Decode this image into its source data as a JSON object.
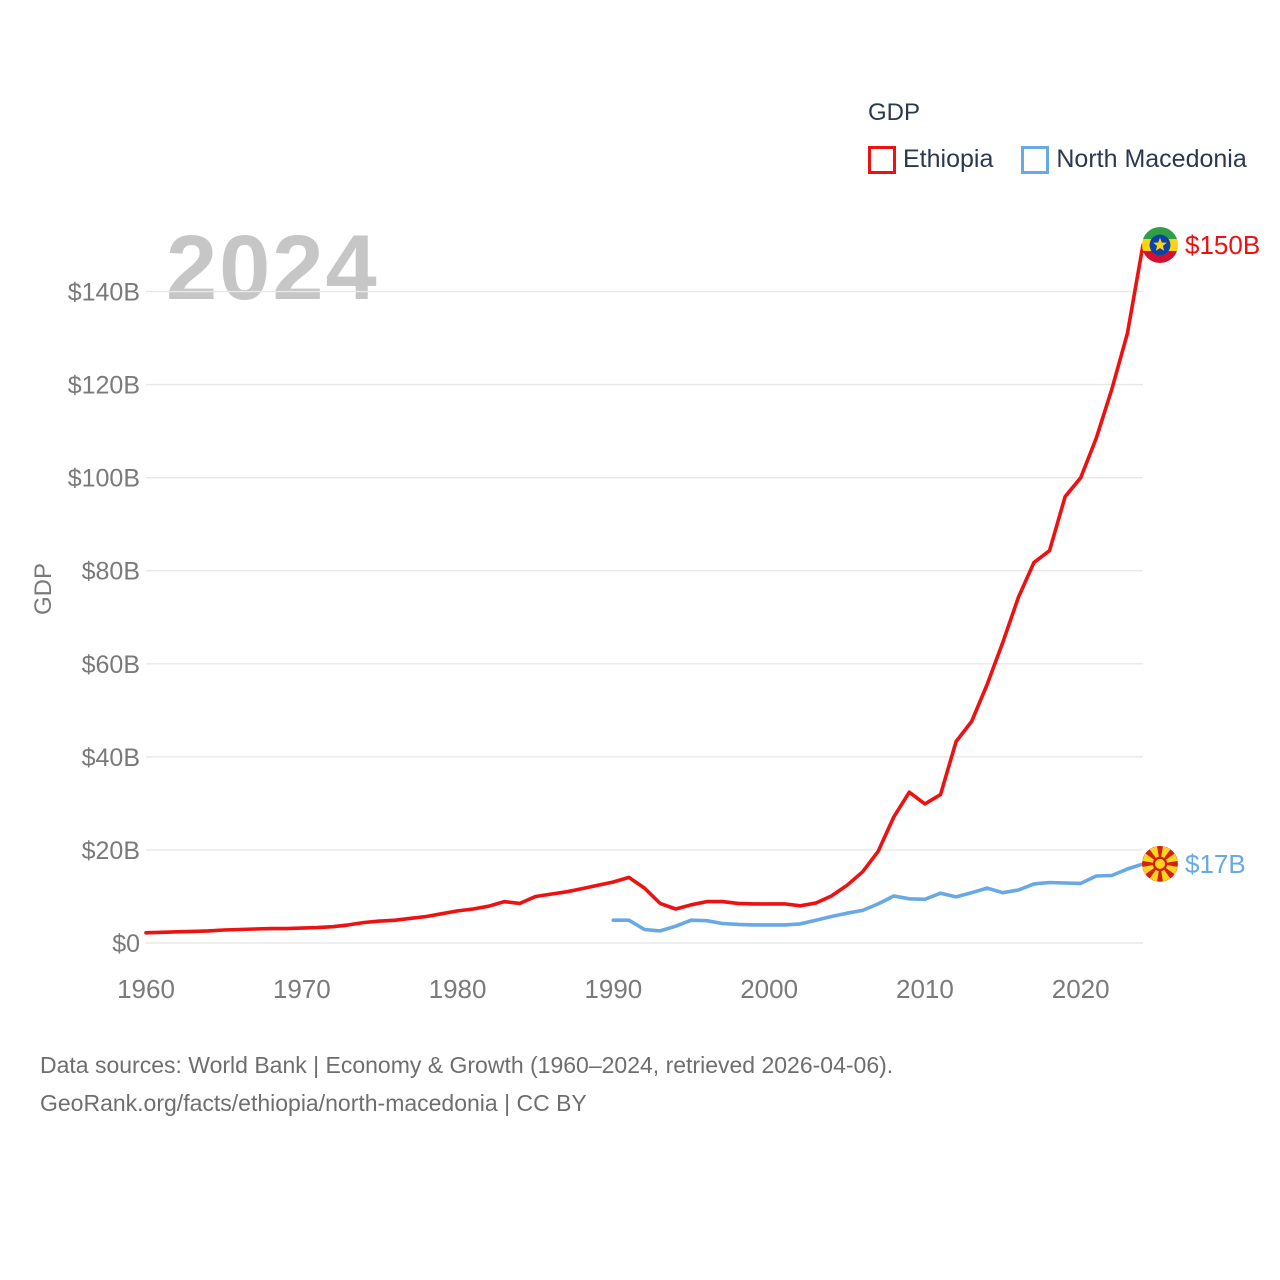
{
  "watermark": "2024",
  "legend": {
    "title": "GDP",
    "items": [
      {
        "label": "Ethiopia",
        "color": "#ee1111"
      },
      {
        "label": "North Macedonia",
        "color": "#68a9e5"
      }
    ]
  },
  "footer": {
    "line1": "Data sources: World Bank | Economy & Growth (1960–2024, retrieved 2026-04-06).",
    "line2": "GeoRank.org/facts/ethiopia/north-macedonia | CC BY"
  },
  "colors": {
    "ethiopia_line": "#ee1111",
    "north_macedonia_line": "#68a9e5",
    "legend_text": "#2a3950",
    "axis_text": "#7a7a7a",
    "footer_text": "#6e6e6e",
    "watermark": "#c6c6c6",
    "grid": "#e8e8e8"
  },
  "chart_data": {
    "type": "line",
    "title": "GDP",
    "xlabel": "",
    "ylabel": "GDP",
    "grid": true,
    "legend_position": "top-right",
    "xlim": [
      1960,
      2024
    ],
    "ylim": [
      0,
      150
    ],
    "x_ticks": [
      1960,
      1970,
      1980,
      1990,
      2000,
      2010,
      2020
    ],
    "y_ticks": [
      {
        "value": 0,
        "label": "$0"
      },
      {
        "value": 20,
        "label": "$20B"
      },
      {
        "value": 40,
        "label": "$40B"
      },
      {
        "value": 60,
        "label": "$60B"
      },
      {
        "value": 80,
        "label": "$80B"
      },
      {
        "value": 100,
        "label": "$100B"
      },
      {
        "value": 120,
        "label": "$120B"
      },
      {
        "value": 140,
        "label": "$140B"
      }
    ],
    "series": [
      {
        "name": "Ethiopia",
        "color": "#ee1111",
        "flag": "ethiopia",
        "end_label": "$150B",
        "years": [
          1960,
          1961,
          1962,
          1963,
          1964,
          1965,
          1966,
          1967,
          1968,
          1969,
          1970,
          1971,
          1972,
          1973,
          1974,
          1975,
          1976,
          1977,
          1978,
          1979,
          1980,
          1981,
          1982,
          1983,
          1984,
          1985,
          1986,
          1987,
          1988,
          1989,
          1990,
          1991,
          1992,
          1993,
          1994,
          1995,
          1996,
          1997,
          1998,
          1999,
          2000,
          2001,
          2002,
          2003,
          2004,
          2005,
          2006,
          2007,
          2008,
          2009,
          2010,
          2011,
          2012,
          2013,
          2014,
          2015,
          2016,
          2017,
          2018,
          2019,
          2020,
          2021,
          2022,
          2023,
          2024
        ],
        "values": [
          2.2,
          2.3,
          2.4,
          2.5,
          2.6,
          2.8,
          2.9,
          3.0,
          3.1,
          3.1,
          3.2,
          3.3,
          3.5,
          3.9,
          4.4,
          4.7,
          4.9,
          5.3,
          5.7,
          6.3,
          6.9,
          7.3,
          7.9,
          8.9,
          8.5,
          10.0,
          10.5,
          11.0,
          11.7,
          12.4,
          13.1,
          14.1,
          11.8,
          8.5,
          7.3,
          8.2,
          8.9,
          8.9,
          8.5,
          8.4,
          8.4,
          8.4,
          8.0,
          8.6,
          10.1,
          12.4,
          15.3,
          19.7,
          27.1,
          32.4,
          29.9,
          31.9,
          43.3,
          47.6,
          55.6,
          64.6,
          74.3,
          81.8,
          84.3,
          95.9,
          100.0,
          108.5,
          119.0,
          131.0,
          150.0
        ]
      },
      {
        "name": "North Macedonia",
        "color": "#68a9e5",
        "flag": "north-macedonia",
        "end_label": "$17B",
        "years": [
          1990,
          1991,
          1992,
          1993,
          1994,
          1995,
          1996,
          1997,
          1998,
          1999,
          2000,
          2001,
          2002,
          2003,
          2004,
          2005,
          2006,
          2007,
          2008,
          2009,
          2010,
          2011,
          2012,
          2013,
          2014,
          2015,
          2016,
          2017,
          2018,
          2019,
          2020,
          2021,
          2022,
          2023,
          2024
        ],
        "values": [
          4.9,
          4.9,
          2.9,
          2.6,
          3.6,
          4.9,
          4.8,
          4.2,
          4.0,
          3.9,
          3.9,
          3.9,
          4.1,
          4.9,
          5.7,
          6.4,
          7.0,
          8.4,
          10.1,
          9.5,
          9.4,
          10.7,
          9.9,
          10.8,
          11.8,
          10.8,
          11.4,
          12.7,
          13.0,
          12.9,
          12.8,
          14.4,
          14.5,
          15.9,
          17.0
        ]
      }
    ]
  }
}
